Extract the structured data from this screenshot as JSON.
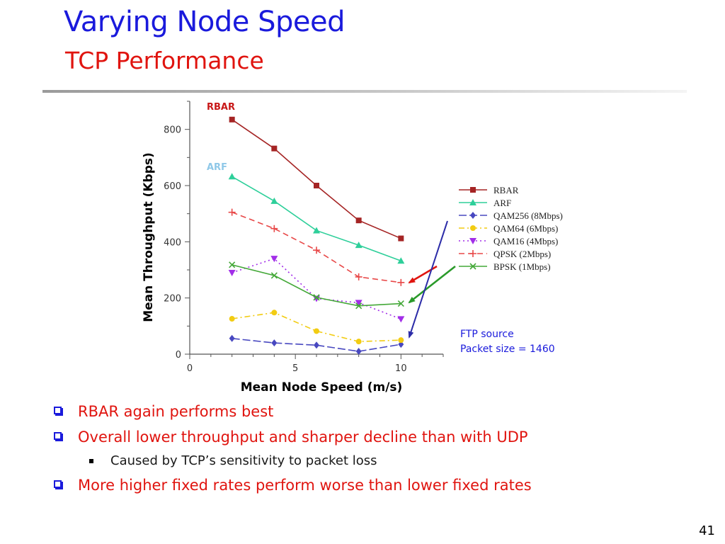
{
  "slide": {
    "title": "Varying Node Speed",
    "subtitle": "TCP Performance",
    "page_number": "41"
  },
  "annotations": {
    "rbar_label": "RBAR",
    "arf_label": "ARF",
    "ftp_source": "FTP source",
    "packet_size": "Packet size = 1460"
  },
  "bullets": [
    {
      "text": "RBAR again performs best",
      "level": 1
    },
    {
      "text": "Overall lower throughput and sharper decline than with UDP",
      "level": 1
    },
    {
      "text": "Caused by TCP’s sensitivity to packet loss",
      "level": 2
    },
    {
      "text": "More higher fixed rates perform worse than lower fixed rates",
      "level": 1
    }
  ],
  "colors": {
    "title": "#1a1adc",
    "subtitle": "#e0140f",
    "bullet_text": "#e0140f",
    "bullet_box": "#1a1adc",
    "arrow_red": "#e0140f",
    "arrow_green": "#2a9a2a",
    "arrow_blue": "#2c2ca8",
    "annotation_blue": "#1a1adc",
    "arf_label": "#8fc8e8"
  },
  "chart_data": {
    "type": "line",
    "xlabel": "Mean Node Speed (m/s)",
    "ylabel": "Mean Throughput (Kbps)",
    "xlim": [
      0,
      12
    ],
    "ylim": [
      0,
      900
    ],
    "xticks": [
      0,
      5,
      10
    ],
    "yticks": [
      0,
      200,
      400,
      600,
      800
    ],
    "grid": false,
    "legend_position": "right",
    "x": [
      2,
      4,
      6,
      8,
      10
    ],
    "series": [
      {
        "name": "RBAR",
        "values": [
          835,
          732,
          600,
          476,
          412
        ],
        "color": "#a52424",
        "dash": "solid",
        "marker": "square"
      },
      {
        "name": "ARF",
        "values": [
          632,
          545,
          440,
          388,
          332
        ],
        "color": "#2ecf9a",
        "dash": "solid",
        "marker": "triangle-up"
      },
      {
        "name": "QAM256 (8Mbps)",
        "values": [
          56,
          40,
          32,
          10,
          35
        ],
        "color": "#4848c0",
        "dash": "longdash",
        "marker": "diamond"
      },
      {
        "name": "QAM64 (6Mbps)",
        "values": [
          126,
          148,
          82,
          45,
          50
        ],
        "color": "#f2cc12",
        "dash": "dashdot",
        "marker": "circle"
      },
      {
        "name": "QAM16 (4Mbps)",
        "values": [
          290,
          340,
          198,
          183,
          125
        ],
        "color": "#a22ee8",
        "dash": "dot",
        "marker": "triangle-down"
      },
      {
        "name": "QPSK (2Mbps)",
        "values": [
          505,
          447,
          370,
          275,
          255
        ],
        "color": "#e84848",
        "dash": "dash",
        "marker": "plus"
      },
      {
        "name": "BPSK (1Mbps)",
        "values": [
          318,
          280,
          202,
          172,
          180
        ],
        "color": "#44a838",
        "dash": "solid",
        "marker": "x"
      }
    ]
  }
}
